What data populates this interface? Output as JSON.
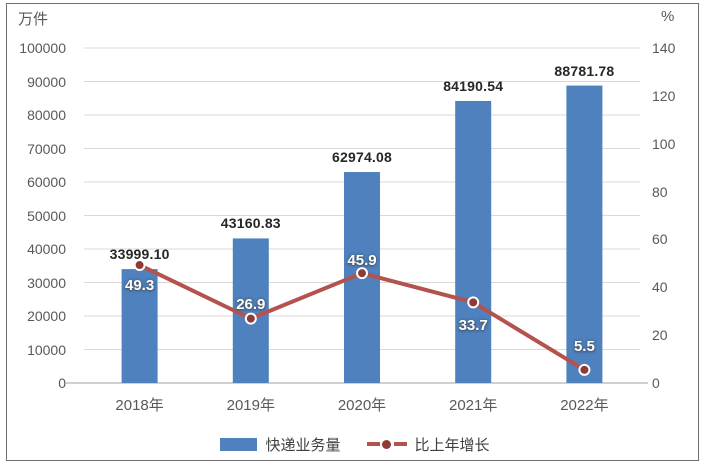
{
  "chart_data": {
    "type": "combo-bar-line",
    "categories": [
      "2018年",
      "2019年",
      "2020年",
      "2021年",
      "2022年"
    ],
    "series": [
      {
        "name": "快递业务量",
        "type": "bar",
        "axis": "left",
        "color": "#4e81bd",
        "values": [
          33999.1,
          43160.83,
          62974.08,
          84190.54,
          88781.78
        ],
        "labels": [
          "33999.10",
          "43160.83",
          "62974.08",
          "84190.54",
          "88781.78"
        ]
      },
      {
        "name": "比上年增长",
        "type": "line",
        "axis": "right",
        "color": "#b4524e",
        "marker_color": "#8e3b36",
        "values": [
          49.3,
          26.9,
          45.9,
          33.7,
          5.5
        ],
        "labels": [
          "49.3",
          "26.9",
          "45.9",
          "33.7",
          "5.5"
        ]
      }
    ],
    "left_axis": {
      "title": "万件",
      "min": 0,
      "max": 100000,
      "step": 10000,
      "ticks": [
        "0",
        "10000",
        "20000",
        "30000",
        "40000",
        "50000",
        "60000",
        "70000",
        "80000",
        "90000",
        "100000"
      ]
    },
    "right_axis": {
      "title": "%",
      "min": 0,
      "max": 140,
      "step": 20,
      "ticks": [
        "0",
        "20",
        "40",
        "60",
        "80",
        "100",
        "120",
        "140"
      ]
    },
    "grid": true,
    "legend_position": "bottom",
    "colors": {
      "background": "#ffffff",
      "frame_border": "#6e6e6e",
      "gridline": "#d9d9d9",
      "axis_line": "#b3b3b3",
      "tick_text": "#595959",
      "bar_label_text": "#262626",
      "line_label_text": "#ffffff"
    }
  }
}
